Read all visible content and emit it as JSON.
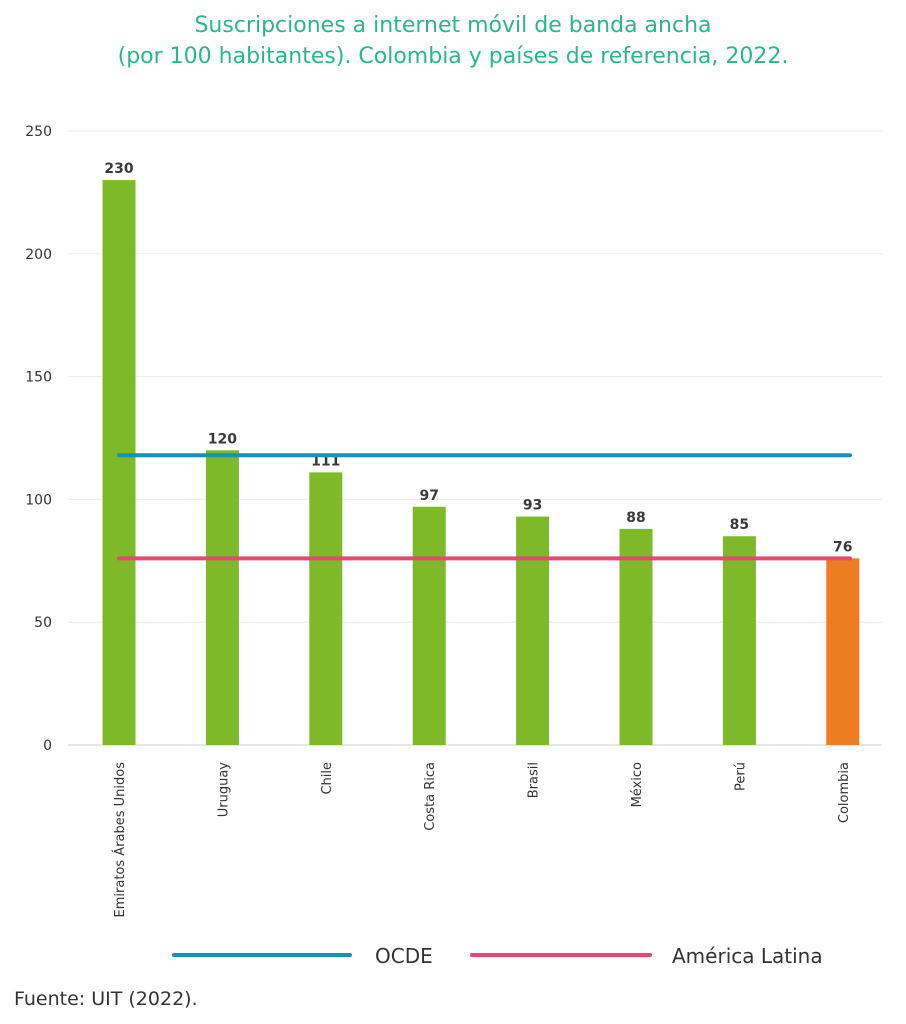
{
  "chart_data": {
    "type": "bar",
    "title_line1": "Suscripciones a internet móvil de banda ancha",
    "title_line2": "(por 100 habitantes). Colombia y países de referencia, 2022.",
    "categories": [
      "Emiratos Árabes Unidos",
      "Uruguay",
      "Chile",
      "Costa Rica",
      "Brasil",
      "México",
      "Perú",
      "Colombia"
    ],
    "values": [
      230,
      120,
      111,
      97,
      93,
      88,
      85,
      76
    ],
    "data_labels": [
      "230",
      "120",
      "111",
      "97",
      "93",
      "88",
      "85",
      "76"
    ],
    "bar_colors": [
      "#7db928",
      "#7db928",
      "#7db928",
      "#7db928",
      "#7db928",
      "#7db928",
      "#7db928",
      "#ee7d22"
    ],
    "ylim": [
      0,
      250
    ],
    "yticks": [
      "0",
      "50",
      "100",
      "150",
      "200",
      "250"
    ],
    "reference_lines": [
      {
        "name": "OCDE",
        "value": 118,
        "color": "#1a8fb5"
      },
      {
        "name": "América Latina",
        "value": 76,
        "color": "#e24a70"
      }
    ],
    "grid": true,
    "legend_position": "bottom"
  },
  "source": "Fuente: UIT (2022)."
}
